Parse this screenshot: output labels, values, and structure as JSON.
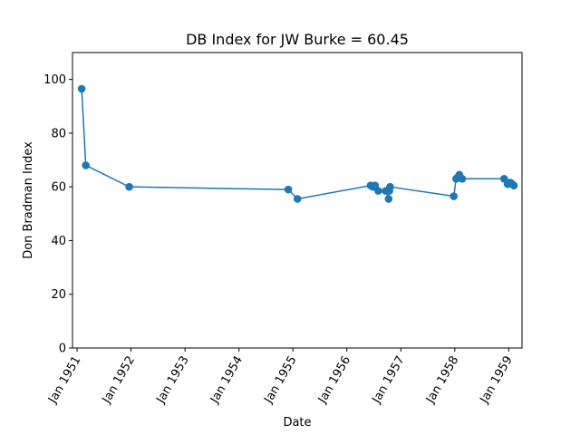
{
  "chart_data": {
    "type": "line",
    "title": "DB Index for JW Burke = 60.45",
    "xlabel": "Date",
    "ylabel": "Don Bradman Index",
    "xlim": [
      "1950-12-01",
      "1959-04-01"
    ],
    "ylim": [
      0,
      110
    ],
    "grid": false,
    "color": "#1f77b4",
    "x_ticks": [
      "1951-01-01",
      "1952-01-01",
      "1953-01-01",
      "1954-01-01",
      "1955-01-01",
      "1956-01-01",
      "1957-01-01",
      "1958-01-01",
      "1959-01-01"
    ],
    "x_tick_labels": [
      "Jan 1951",
      "Jan 1952",
      "Jan 1953",
      "Jan 1954",
      "Jan 1955",
      "Jan 1956",
      "Jan 1957",
      "Jan 1958",
      "Jan 1959"
    ],
    "y_ticks": [
      0,
      20,
      40,
      60,
      80,
      100
    ],
    "y_tick_labels": [
      "0",
      "20",
      "40",
      "60",
      "80",
      "100"
    ],
    "series": [
      {
        "x": [
          "1951-02-01",
          "1951-03-01",
          "1951-12-20",
          "1954-12-01",
          "1955-02-01",
          "1956-06-10",
          "1956-06-25",
          "1956-07-10",
          "1956-08-01",
          "1956-09-20",
          "1956-10-10",
          "1956-10-15",
          "1956-10-20",
          "1957-12-25",
          "1958-01-10",
          "1958-01-20",
          "1958-02-01",
          "1958-02-20",
          "1958-12-01",
          "1958-12-25",
          "1959-01-05",
          "1959-01-15",
          "1959-01-25",
          "1959-02-05"
        ],
        "y": [
          96.5,
          68,
          60,
          59,
          55.5,
          60.5,
          60,
          60.5,
          58.5,
          58.5,
          55.5,
          58.5,
          60,
          56.5,
          63,
          63.5,
          64.5,
          63,
          63,
          61,
          61.5,
          61.5,
          61,
          60.5
        ]
      }
    ]
  }
}
